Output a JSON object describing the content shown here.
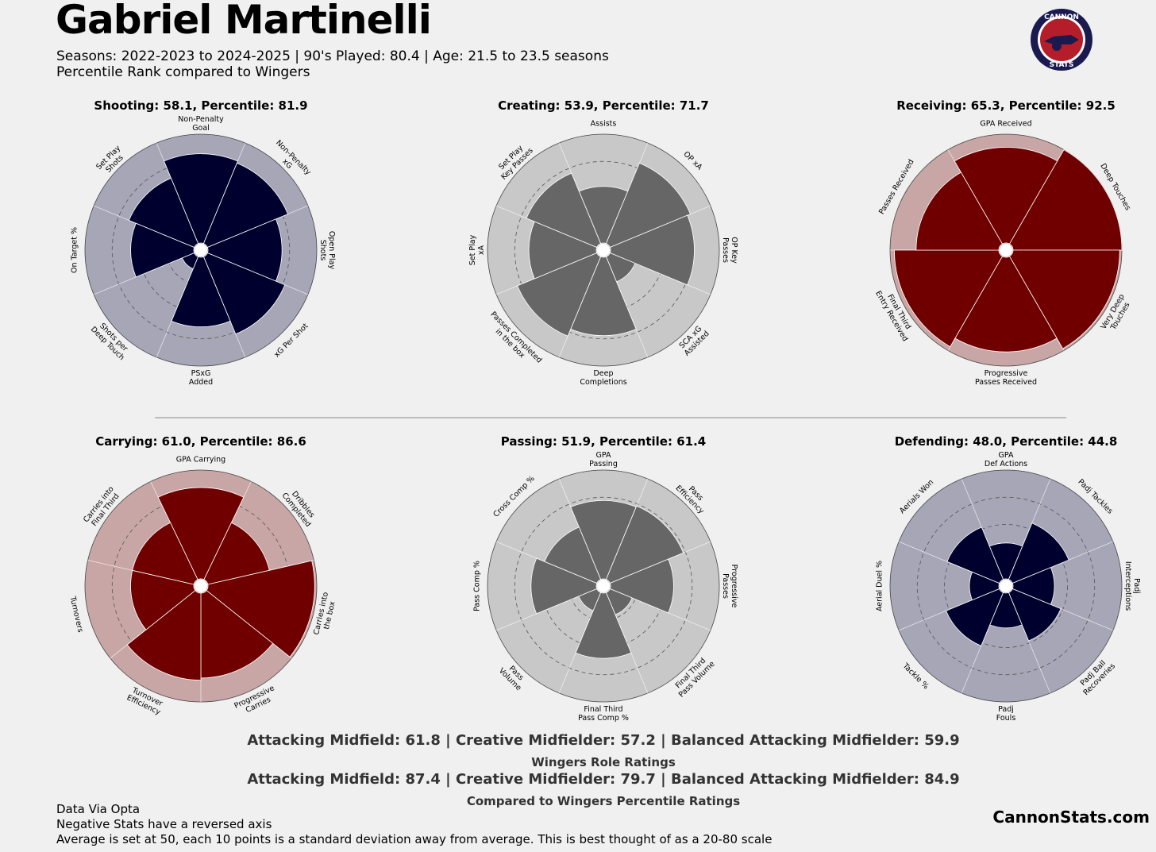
{
  "header": {
    "title": "Gabriel Martinelli",
    "subtitle_line1": "Seasons: 2022-2023 to 2024-2025 | 90's Played: 80.4 | Age: 21.5 to 23.5 seasons",
    "subtitle_line2": "Percentile Rank compared to Wingers",
    "logo_icon": "cannon-stats-logo-icon",
    "logo_text_top": "CANNON",
    "logo_text_bottom": "STATS"
  },
  "colors": {
    "background": "#f0f0f0",
    "navy_fill": "#00002e",
    "navy_bg": "#a6a6b6",
    "grey_fill": "#666666",
    "grey_bg": "#c8c8c8",
    "red_fill": "#700000",
    "red_bg": "#c9a6a6"
  },
  "chart_data": [
    {
      "type": "polar-bar",
      "title": "Shooting: 58.1, Percentile: 81.9",
      "theme": "navy",
      "categories": [
        "Non-Penalty\nGoal",
        "Non-Penalty\nxG",
        "Open Play\nShots",
        "xG Per Shot",
        "PSxG\nAdded",
        "Shots per\nDeep Touch",
        "On Target %",
        "Set Play\nShots"
      ],
      "values": [
        82,
        80,
        68,
        77,
        64,
        12,
        58,
        65
      ],
      "rlim": [
        0,
        100
      ]
    },
    {
      "type": "polar-bar",
      "title": "Creating: 53.9, Percentile: 71.7",
      "theme": "grey",
      "categories": [
        "Assists",
        "OP xA",
        "OP Key\nPasses",
        "SCA xG\nAssisted",
        "Deep\nCompletions",
        "Passes Completed\nin the box",
        "Set Play\nxA",
        "Set Play\nKey Passes"
      ],
      "values": [
        52,
        80,
        77,
        25,
        72,
        79,
        62,
        70
      ],
      "rlim": [
        0,
        100
      ]
    },
    {
      "type": "polar-bar",
      "title": "Receiving: 65.3, Percentile: 92.5",
      "theme": "red",
      "categories": [
        "GPA Received",
        "Deep Touches",
        "Very Deep\nTouches",
        "Progressive\nPasses Received",
        "Final Third\nEntry Received",
        "Passes Received"
      ],
      "values": [
        88,
        100,
        98,
        87,
        96,
        76
      ],
      "rlim": [
        0,
        100
      ]
    },
    {
      "type": "polar-bar",
      "title": "Carrying: 61.0, Percentile: 86.6",
      "theme": "red",
      "categories": [
        "GPA Carrying",
        "Dribbles\nCompleted",
        "Carries into\nthe box",
        "Progressive\nCarries",
        "Turnover\nEfficiency",
        "Turnovers",
        "Carries into\nFinal Third"
      ],
      "values": [
        84,
        58,
        98,
        78,
        80,
        58,
        58
      ],
      "rlim": [
        0,
        100
      ]
    },
    {
      "type": "polar-bar",
      "title": "Passing: 51.9, Percentile: 61.4",
      "theme": "grey",
      "categories": [
        "GPA\nPassing",
        "Pass\nEfficiency",
        "Progressive\nPasses",
        "Final Third\nPass Volume",
        "Final Third\nPass Comp %",
        "Pass\nVolume",
        "Pass Comp %",
        "Cross Comp %"
      ],
      "values": [
        72,
        73,
        58,
        22,
        60,
        18,
        60,
        52
      ],
      "rlim": [
        0,
        100
      ]
    },
    {
      "type": "polar-bar",
      "title": "Defending: 48.0, Percentile: 44.8",
      "theme": "navy",
      "categories": [
        "GPA\nDef Actions",
        "Padj Tackles",
        "Padj\nInterceptions",
        "Padj Ball\nRecoveries",
        "Padj\nFouls",
        "Tackle %",
        "Aerial Duel %",
        "Aerials Won"
      ],
      "values": [
        33,
        56,
        38,
        48,
        32,
        53,
        27,
        52
      ],
      "rlim": [
        0,
        100
      ]
    }
  ],
  "ratings": {
    "line1": "Attacking Midfield: 61.8 | Creative Midfielder: 57.2 | Balanced Attacking Midfielder: 59.9",
    "caption1": "Wingers Role Ratings",
    "line2": "Attacking Midfield: 87.4 | Creative Midfielder: 79.7 | Balanced Attacking Midfielder: 84.9",
    "caption2": "Compared to Wingers Percentile Ratings"
  },
  "footer": {
    "note1": "Data Via Opta",
    "note2": "Negative Stats have a reversed axis",
    "note3": "Average is set at 50, each 10 points is a standard deviation away from average. This is best thought of as a 20-80 scale",
    "brand": "CannonStats.com"
  }
}
